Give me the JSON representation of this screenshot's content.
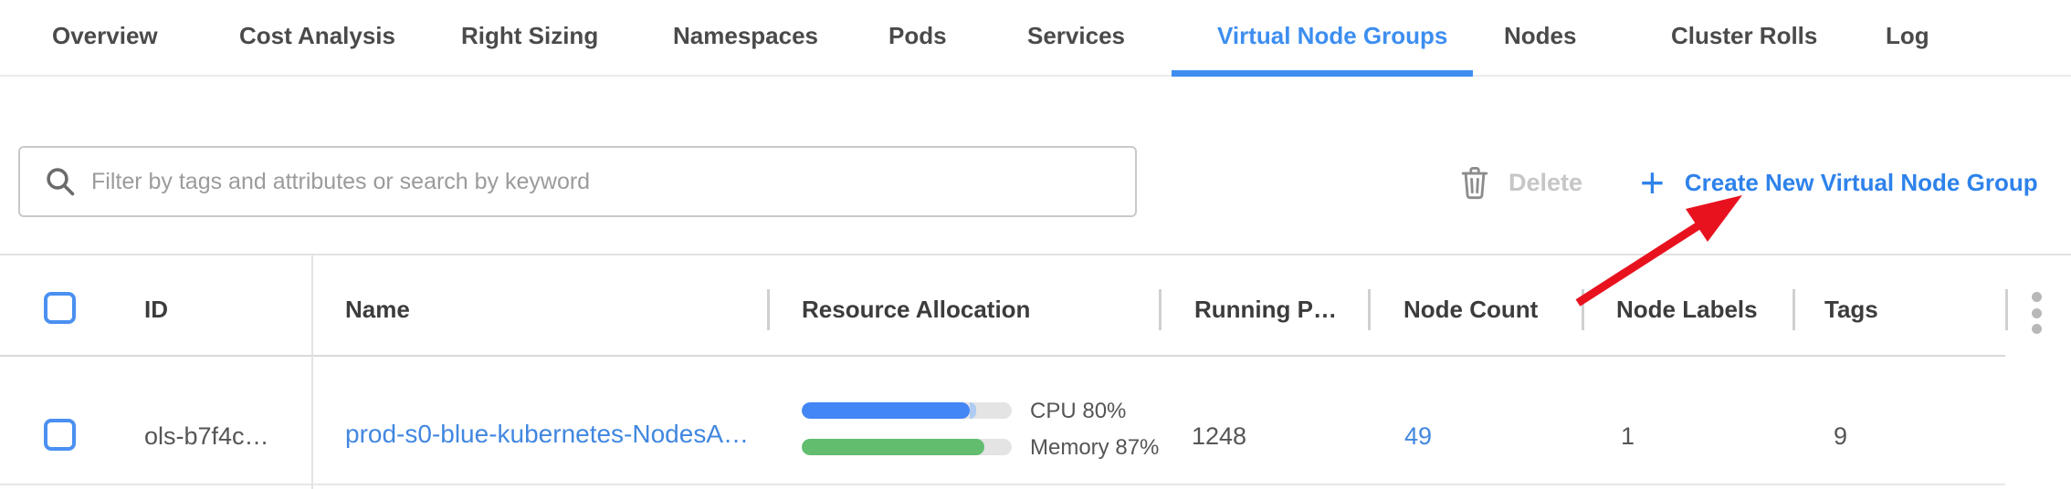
{
  "tabs": {
    "items": [
      {
        "label": "Overview",
        "active": false
      },
      {
        "label": "Cost Analysis",
        "active": false
      },
      {
        "label": "Right Sizing",
        "active": false
      },
      {
        "label": "Namespaces",
        "active": false
      },
      {
        "label": "Pods",
        "active": false
      },
      {
        "label": "Services",
        "active": false
      },
      {
        "label": "Virtual Node Groups",
        "active": true
      },
      {
        "label": "Nodes",
        "active": false
      },
      {
        "label": "Cluster Rolls",
        "active": false
      },
      {
        "label": "Log",
        "active": false
      }
    ]
  },
  "toolbar": {
    "search_placeholder": "Filter by tags and attributes or search by keyword",
    "delete_label": "Delete",
    "plus_glyph": "+",
    "create_label": "Create New Virtual Node Group"
  },
  "table": {
    "columns": {
      "id": "ID",
      "name": "Name",
      "resource_allocation": "Resource Allocation",
      "running_pods": "Running P…",
      "node_count": "Node Count",
      "node_labels": "Node Labels",
      "tags": "Tags"
    },
    "rows": [
      {
        "id": "ols-b7f4c…",
        "name": "prod-s0-blue-kubernetes-NodesA…",
        "cpu": {
          "label": "CPU 80%",
          "pct": 80,
          "extra_pct": 3
        },
        "memory": {
          "label": "Memory 87%",
          "pct": 87
        },
        "running_pods": "1248",
        "node_count": "49",
        "node_labels": "1",
        "tags": "9"
      }
    ]
  },
  "annotation": {
    "type": "red-arrow",
    "target": "create-new-virtual-node-group-button",
    "color": "#e8121f"
  },
  "colors": {
    "tab_active": "#3d8ef0",
    "action_blue": "#2e82ea",
    "link_blue": "#4187e0",
    "bar_blue": "#4386f5",
    "bar_blue_light": "#aecbf2",
    "bar_green": "#62bd6f",
    "bar_track": "#e4e4e4",
    "disabled_gray": "#c6c6c6",
    "arrow_red": "#e8121f"
  }
}
